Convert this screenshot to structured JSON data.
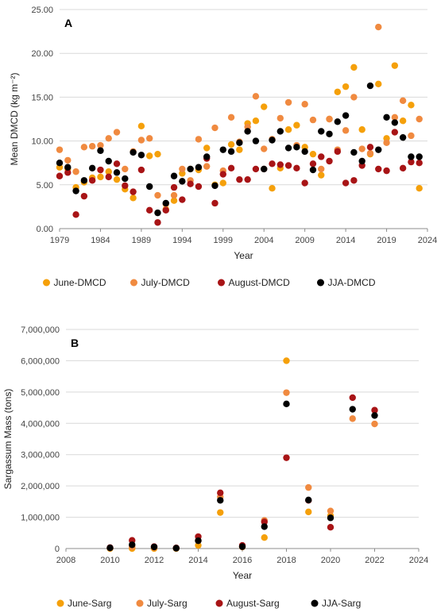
{
  "chart_data": [
    {
      "type": "scatter",
      "panel_label": "A",
      "xlabel": "Year",
      "ylabel": "Mean DMCD (kg m⁻²)",
      "xlim": [
        1979,
        2024
      ],
      "ylim": [
        0,
        25
      ],
      "x_ticks": [
        "1979",
        "1984",
        "1989",
        "1994",
        "1999",
        "2004",
        "2009",
        "2014",
        "2019",
        "2024"
      ],
      "y_ticks": [
        "0.00",
        "5.00",
        "10.00",
        "15.00",
        "20.00",
        "25.00"
      ],
      "grid": "horizontal",
      "legend_position": "bottom",
      "series": [
        {
          "name": "June-DMCD",
          "color": "#f5a00a",
          "x": [
            1979,
            1980,
            1981,
            1982,
            1983,
            1984,
            1985,
            1986,
            1987,
            1988,
            1989,
            1990,
            1991,
            1992,
            1993,
            1994,
            1995,
            1996,
            1997,
            1998,
            1999,
            2000,
            2001,
            2002,
            2003,
            2004,
            2005,
            2006,
            2007,
            2008,
            2009,
            2010,
            2011,
            2012,
            2013,
            2014,
            2015,
            2016,
            2017,
            2018,
            2019,
            2020,
            2021,
            2022,
            2023
          ],
          "y": [
            7.0,
            6.8,
            4.7,
            5.3,
            5.8,
            5.9,
            6.5,
            5.6,
            4.5,
            3.5,
            11.7,
            8.3,
            8.5,
            2.2,
            3.2,
            6.3,
            6.8,
            6.7,
            9.2,
            5.0,
            5.2,
            9.6,
            9.0,
            12.0,
            12.3,
            13.9,
            4.6,
            6.9,
            11.3,
            11.8,
            9.3,
            8.5,
            6.1,
            12.5,
            15.6,
            16.2,
            18.4,
            11.3,
            8.5,
            16.5,
            10.3,
            18.6,
            12.3,
            14.1,
            4.6
          ]
        },
        {
          "name": "July-DMCD",
          "color": "#f08a40",
          "x": [
            1979,
            1980,
            1981,
            1982,
            1983,
            1984,
            1985,
            1986,
            1987,
            1988,
            1989,
            1990,
            1991,
            1992,
            1993,
            1994,
            1995,
            1996,
            1997,
            1998,
            1999,
            2000,
            2001,
            2002,
            2003,
            2004,
            2005,
            2006,
            2007,
            2008,
            2009,
            2010,
            2011,
            2012,
            2013,
            2014,
            2015,
            2016,
            2017,
            2018,
            2019,
            2020,
            2021,
            2022,
            2023
          ],
          "y": [
            9.0,
            7.8,
            6.5,
            9.3,
            9.4,
            9.5,
            10.3,
            11.0,
            6.8,
            8.8,
            10.1,
            10.3,
            3.8,
            2.8,
            3.8,
            6.8,
            5.5,
            10.2,
            7.1,
            11.5,
            6.6,
            12.7,
            9.9,
            11.6,
            15.1,
            9.1,
            10.2,
            12.6,
            14.4,
            9.5,
            14.2,
            12.4,
            6.8,
            12.5,
            9.0,
            11.2,
            15.0,
            9.1,
            8.6,
            23.0,
            9.8,
            12.7,
            14.6,
            10.6,
            12.5
          ]
        },
        {
          "name": "August-DMCD",
          "color": "#a81416",
          "x": [
            1979,
            1980,
            1981,
            1982,
            1983,
            1984,
            1985,
            1986,
            1987,
            1988,
            1989,
            1990,
            1991,
            1992,
            1993,
            1994,
            1995,
            1996,
            1997,
            1998,
            1999,
            2000,
            2001,
            2002,
            2003,
            2004,
            2005,
            2006,
            2007,
            2008,
            2009,
            2010,
            2011,
            2012,
            2013,
            2014,
            2015,
            2016,
            2017,
            2018,
            2019,
            2020,
            2021,
            2022,
            2023
          ],
          "y": [
            6.0,
            6.4,
            1.6,
            3.7,
            5.5,
            6.7,
            5.9,
            7.4,
            4.9,
            4.2,
            6.7,
            2.1,
            0.7,
            2.1,
            4.7,
            3.3,
            5.1,
            4.8,
            8.0,
            2.9,
            6.2,
            6.9,
            5.6,
            5.6,
            6.8,
            6.8,
            7.4,
            7.3,
            7.2,
            6.9,
            5.2,
            7.4,
            8.2,
            7.7,
            8.8,
            5.2,
            5.5,
            7.2,
            9.3,
            6.8,
            6.6,
            11.0,
            6.9,
            7.6,
            7.5
          ]
        },
        {
          "name": "JJA-DMCD",
          "color": "#000000",
          "x": [
            1979,
            1980,
            1981,
            1982,
            1983,
            1984,
            1985,
            1986,
            1987,
            1988,
            1989,
            1990,
            1991,
            1992,
            1993,
            1994,
            1995,
            1996,
            1997,
            1998,
            1999,
            2000,
            2001,
            2002,
            2003,
            2004,
            2005,
            2006,
            2007,
            2008,
            2009,
            2010,
            2011,
            2012,
            2013,
            2014,
            2015,
            2016,
            2017,
            2018,
            2019,
            2020,
            2021,
            2022,
            2023
          ],
          "y": [
            7.5,
            7.0,
            4.3,
            5.5,
            6.9,
            8.9,
            7.7,
            6.4,
            5.7,
            8.7,
            8.4,
            4.8,
            1.8,
            2.9,
            6.0,
            5.4,
            6.8,
            7.0,
            8.2,
            4.9,
            9.0,
            8.8,
            9.8,
            11.1,
            10.0,
            6.8,
            10.1,
            11.1,
            9.2,
            9.3,
            8.8,
            6.7,
            11.1,
            10.8,
            12.2,
            12.9,
            8.7,
            7.7,
            16.3,
            9.0,
            12.7,
            12.1,
            10.4,
            8.2,
            8.2
          ]
        }
      ]
    },
    {
      "type": "scatter",
      "panel_label": "B",
      "xlabel": "Year",
      "ylabel": "Sargassum Mass (tons)",
      "xlim": [
        2008,
        2024
      ],
      "ylim": [
        0,
        7000000
      ],
      "x_ticks": [
        "2008",
        "2010",
        "2012",
        "2014",
        "2016",
        "2018",
        "2020",
        "2022",
        "2024"
      ],
      "y_ticks": [
        "0",
        "1,000,000",
        "2,000,000",
        "3,000,000",
        "4,000,000",
        "5,000,000",
        "6,000,000",
        "7,000,000"
      ],
      "grid": "horizontal",
      "legend_position": "bottom",
      "series": [
        {
          "name": "June-Sarg",
          "color": "#f5a00a",
          "x": [
            2010,
            2011,
            2012,
            2013,
            2014,
            2015,
            2016,
            2017,
            2018,
            2019,
            2020
          ],
          "y": [
            0,
            0,
            0,
            0,
            100000,
            1150000,
            50000,
            350000,
            6000000,
            1170000,
            1050000
          ]
        },
        {
          "name": "July-Sarg",
          "color": "#f08a40",
          "x": [
            2010,
            2011,
            2012,
            2013,
            2014,
            2015,
            2016,
            2017,
            2018,
            2019,
            2020,
            2021,
            2022
          ],
          "y": [
            20000,
            50000,
            30000,
            10000,
            250000,
            1650000,
            50000,
            900000,
            4980000,
            1950000,
            1200000,
            4150000,
            3980000
          ]
        },
        {
          "name": "August-Sarg",
          "color": "#a81416",
          "x": [
            2010,
            2011,
            2012,
            2013,
            2014,
            2015,
            2016,
            2017,
            2018,
            2019,
            2020,
            2021,
            2022
          ],
          "y": [
            30000,
            260000,
            60000,
            20000,
            380000,
            1780000,
            100000,
            850000,
            2900000,
            1540000,
            680000,
            4820000,
            4420000
          ]
        },
        {
          "name": "JJA-Sarg",
          "color": "#000000",
          "x": [
            2010,
            2011,
            2012,
            2013,
            2014,
            2015,
            2016,
            2017,
            2018,
            2019,
            2020,
            2021,
            2022
          ],
          "y": [
            20000,
            120000,
            50000,
            10000,
            250000,
            1540000,
            60000,
            700000,
            4620000,
            1550000,
            980000,
            4450000,
            4250000
          ]
        }
      ]
    }
  ]
}
